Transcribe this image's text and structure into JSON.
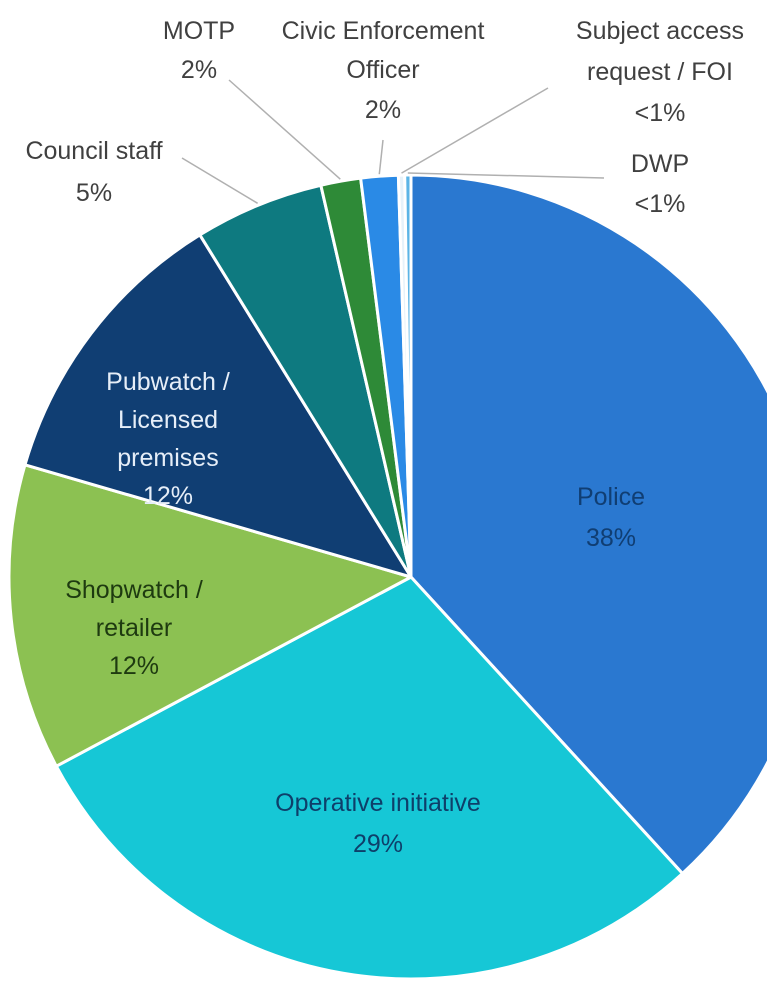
{
  "chart_data": {
    "type": "pie",
    "title": "",
    "start_angle_deg": 0,
    "slices": [
      {
        "name": "Police",
        "display": "38%",
        "value": 38.2,
        "color": "#2A78D0"
      },
      {
        "name": "Operative initiative",
        "display": "29%",
        "value": 29.0,
        "color": "#16C7D6"
      },
      {
        "name": "Shopwatch / retailer",
        "display": "12%",
        "value": 12.3,
        "color": "#8CC152"
      },
      {
        "name": "Pubwatch / Licensed premises",
        "display": "12%",
        "value": 11.7,
        "color": "#103E73"
      },
      {
        "name": "Council staff",
        "display": "5%",
        "value": 5.2,
        "color": "#0E7A80"
      },
      {
        "name": "MOTP",
        "display": "2%",
        "value": 1.6,
        "color": "#2E8A37"
      },
      {
        "name": "Civic Enforcement Officer",
        "display": "2%",
        "value": 1.5,
        "color": "#2A8AE6"
      },
      {
        "name": "Subject access request / FOI",
        "display": "<1%",
        "value": 0.25,
        "color": "#E6F2FA"
      },
      {
        "name": "DWP",
        "display": "<1%",
        "value": 0.25,
        "color": "#5BB4E6"
      }
    ]
  }
}
